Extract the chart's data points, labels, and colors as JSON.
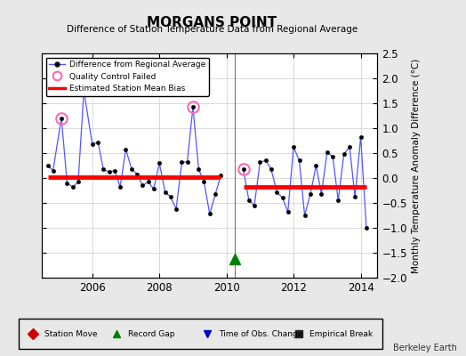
{
  "title": "MORGANS POINT",
  "subtitle": "Difference of Station Temperature Data from Regional Average",
  "ylabel": "Monthly Temperature Anomaly Difference (°C)",
  "credit": "Berkeley Earth",
  "xlim": [
    2004.5,
    2014.5
  ],
  "ylim": [
    -2.0,
    2.5
  ],
  "yticks": [
    -2.0,
    -1.5,
    -1.0,
    -0.5,
    0.0,
    0.5,
    1.0,
    1.5,
    2.0,
    2.5
  ],
  "xticks": [
    2006,
    2008,
    2010,
    2012,
    2014
  ],
  "segment1_bias": 0.02,
  "segment2_bias": -0.18,
  "break_x": 2010.25,
  "qc_failed": [
    [
      2005.08,
      1.2
    ],
    [
      2005.75,
      1.75
    ],
    [
      2009.0,
      1.42
    ],
    [
      2010.5,
      0.17
    ]
  ],
  "time_series_x": [
    2004.67,
    2004.83,
    2005.08,
    2005.25,
    2005.42,
    2005.58,
    2005.75,
    2006.0,
    2006.17,
    2006.33,
    2006.5,
    2006.67,
    2006.83,
    2007.0,
    2007.17,
    2007.33,
    2007.5,
    2007.67,
    2007.83,
    2008.0,
    2008.17,
    2008.33,
    2008.5,
    2008.67,
    2008.83,
    2009.0,
    2009.17,
    2009.33,
    2009.5,
    2009.67,
    2009.83,
    2010.5,
    2010.67,
    2010.83,
    2011.0,
    2011.17,
    2011.33,
    2011.5,
    2011.67,
    2011.83,
    2012.0,
    2012.17,
    2012.33,
    2012.5,
    2012.67,
    2012.83,
    2013.0,
    2013.17,
    2013.33,
    2013.5,
    2013.67,
    2013.83,
    2014.0,
    2014.17
  ],
  "time_series_y": [
    0.25,
    0.15,
    1.2,
    -0.1,
    -0.18,
    -0.08,
    1.75,
    0.68,
    0.72,
    0.18,
    0.12,
    0.15,
    -0.18,
    0.58,
    0.18,
    0.08,
    -0.15,
    -0.08,
    -0.22,
    0.3,
    -0.28,
    -0.38,
    -0.62,
    0.32,
    0.32,
    1.42,
    0.18,
    -0.08,
    -0.72,
    -0.32,
    0.05,
    0.17,
    -0.45,
    -0.55,
    0.32,
    0.35,
    0.18,
    -0.28,
    -0.4,
    -0.68,
    0.62,
    0.35,
    -0.75,
    -0.32,
    0.25,
    -0.32,
    0.52,
    0.42,
    -0.45,
    0.48,
    0.62,
    -0.38,
    0.82,
    -1.0
  ],
  "bg_color": "#e8e8e8",
  "plot_bg_color": "#ffffff",
  "line_color": "#5555ff",
  "bias_color": "#ff0000",
  "qc_color": "#ff69b4",
  "break_line_color": "#777777",
  "gap_marker_color": "#008000",
  "gap_marker_x": 2010.25,
  "gap_marker_y": -1.62
}
